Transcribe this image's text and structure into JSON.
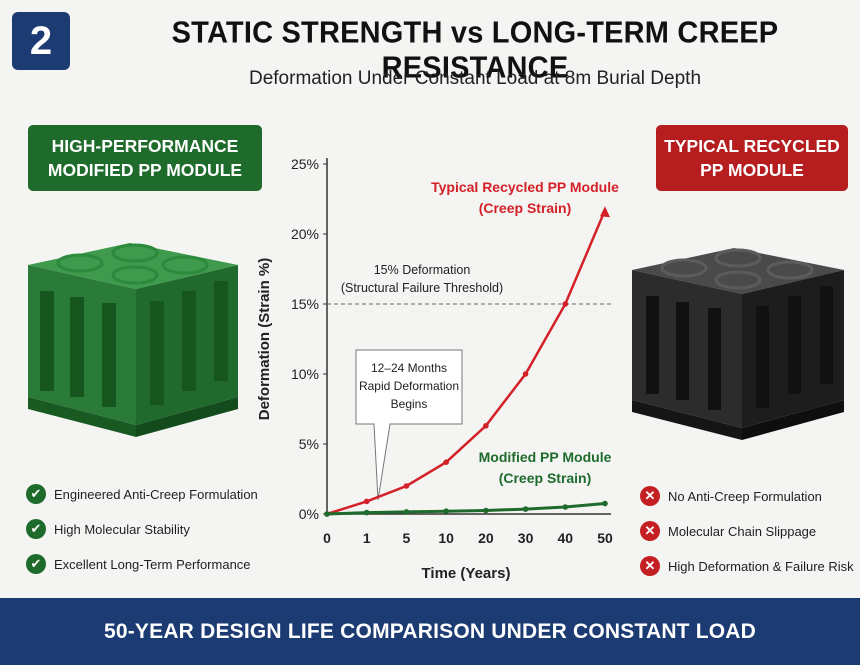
{
  "badge": "2",
  "title": "STATIC STRENGTH vs LONG-TERM CREEP RESISTANCE",
  "subtitle": "Deformation Under Constant Load at 8m Burial Depth",
  "left_panel": {
    "heading": "HIGH-PERFORMANCE\nMODIFIED PP MODULE",
    "color": "#1e6b2c",
    "features": [
      "Engineered Anti-Creep Formulation",
      "High Molecular Stability",
      "Excellent Long-Term Performance"
    ],
    "icon": "check-icon"
  },
  "right_panel": {
    "heading": "TYPICAL RECYCLED\nPP MODULE",
    "color": "#b51d1f",
    "features": [
      "No Anti-Creep Formulation",
      "Molecular Chain Slippage",
      "High Deformation & Failure Risk"
    ],
    "icon": "cross-icon"
  },
  "footer": "50-YEAR DESIGN LIFE COMPARISON UNDER CONSTANT LOAD",
  "chart_data": {
    "type": "line",
    "xlabel": "Time (Years)",
    "ylabel": "Deformation (Strain %)",
    "categories": [
      "0",
      "1",
      "5",
      "10",
      "20",
      "30",
      "40",
      "50"
    ],
    "ylim": [
      0,
      25
    ],
    "yticks": [
      "0%",
      "5%",
      "10%",
      "15%",
      "20%",
      "25%"
    ],
    "grid": false,
    "series": [
      {
        "name": "Typical Recycled PP Module\n(Creep Strain)",
        "color": "#d42128",
        "values": [
          0,
          0.9,
          2.0,
          3.7,
          6.3,
          10.0,
          15.0,
          21.7
        ]
      },
      {
        "name": "Modified PP Module\n(Creep Strain)",
        "color": "#1e6b2c",
        "values": [
          0,
          0.1,
          0.15,
          0.2,
          0.25,
          0.35,
          0.5,
          0.75
        ]
      }
    ],
    "threshold": {
      "value": 15,
      "label": "15% Deformation\n(Structural Failure Threshold)"
    },
    "annotation": "12–24 Months\nRapid Deformation\nBegins"
  }
}
